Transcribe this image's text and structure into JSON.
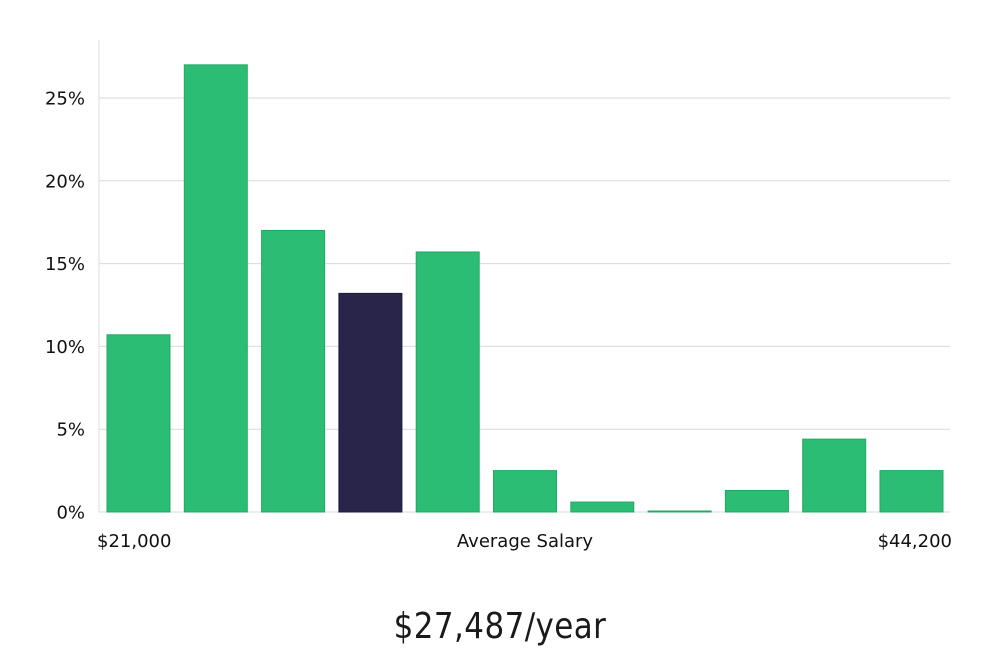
{
  "chart_data": {
    "type": "bar",
    "y_unit": "%",
    "ylim": [
      0,
      28.5
    ],
    "y_ticks": [
      "0%",
      "5%",
      "10%",
      "15%",
      "20%",
      "25%"
    ],
    "y_tick_values": [
      0,
      5,
      10,
      15,
      20,
      25
    ],
    "values": [
      10.7,
      27.0,
      17.0,
      13.2,
      15.7,
      2.5,
      0.6,
      0.05,
      1.3,
      4.4,
      2.5
    ],
    "highlight_index": 3,
    "x_start_label": "$21,000",
    "x_end_label": "$44,200",
    "xlabel": "Average Salary",
    "grid": true,
    "colors": {
      "bar": "#2bbd74",
      "bar_edge": "#22a866",
      "highlight": "#29244a",
      "highlight_edge": "#1d1940"
    }
  },
  "summary": {
    "salary_text": "$27,487/year"
  }
}
